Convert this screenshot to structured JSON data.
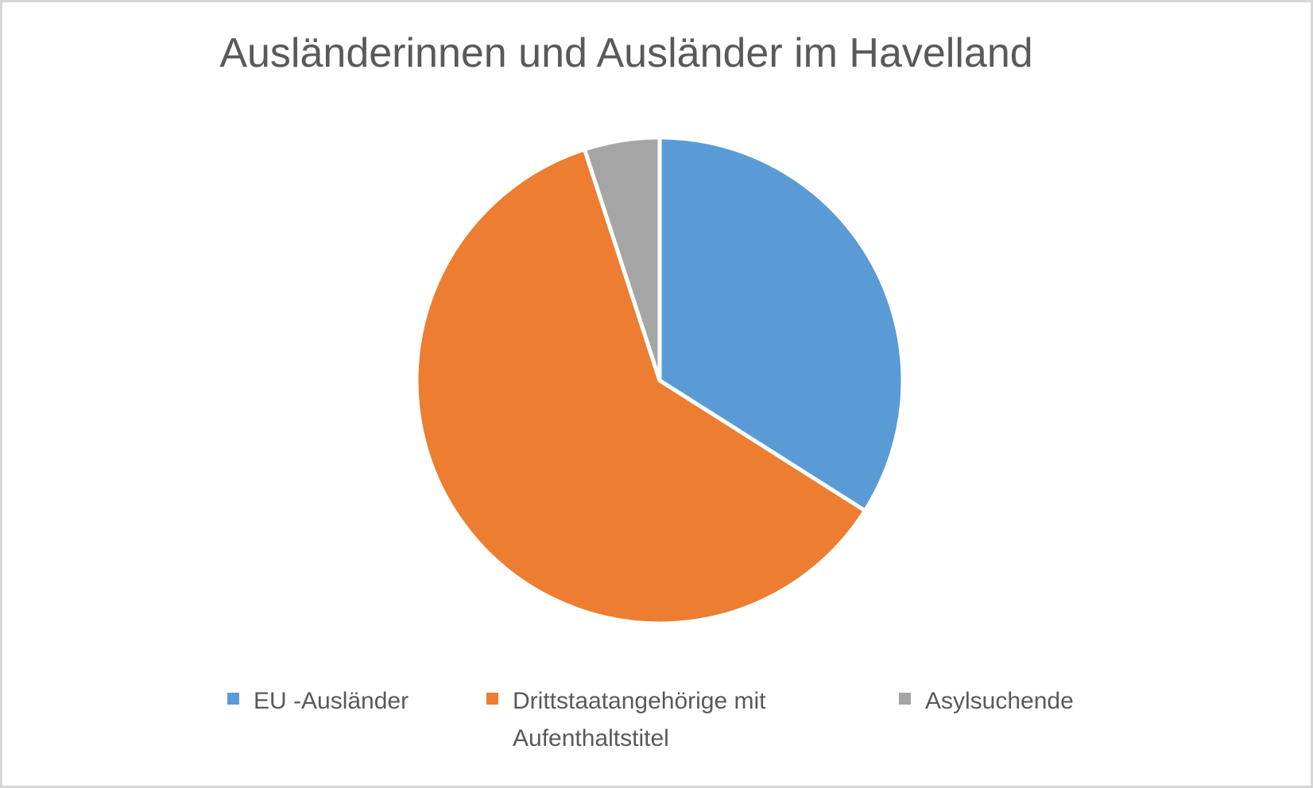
{
  "chart_data": {
    "type": "pie",
    "title": "Ausländerinnen und Ausländer im Havelland",
    "slices": [
      {
        "label": "EU -Ausländer",
        "value": 34,
        "color": "#5B9BD5"
      },
      {
        "label": "Drittstaatangehörige mit Aufenthaltstitel",
        "value": 61,
        "color": "#ED7D31"
      },
      {
        "label": "Asylsuchende",
        "value": 5,
        "color": "#A5A5A5"
      }
    ],
    "values_are_percent_estimates": true,
    "start_angle_deg": 0,
    "direction": "clockwise",
    "legend_position": "bottom",
    "slice_separator_color": "#FFFFFF"
  },
  "style": {
    "title_color": "#595959",
    "legend_text_color": "#595959",
    "canvas_border_color": "#D6D6D6",
    "background_color": "#FFFFFF"
  }
}
